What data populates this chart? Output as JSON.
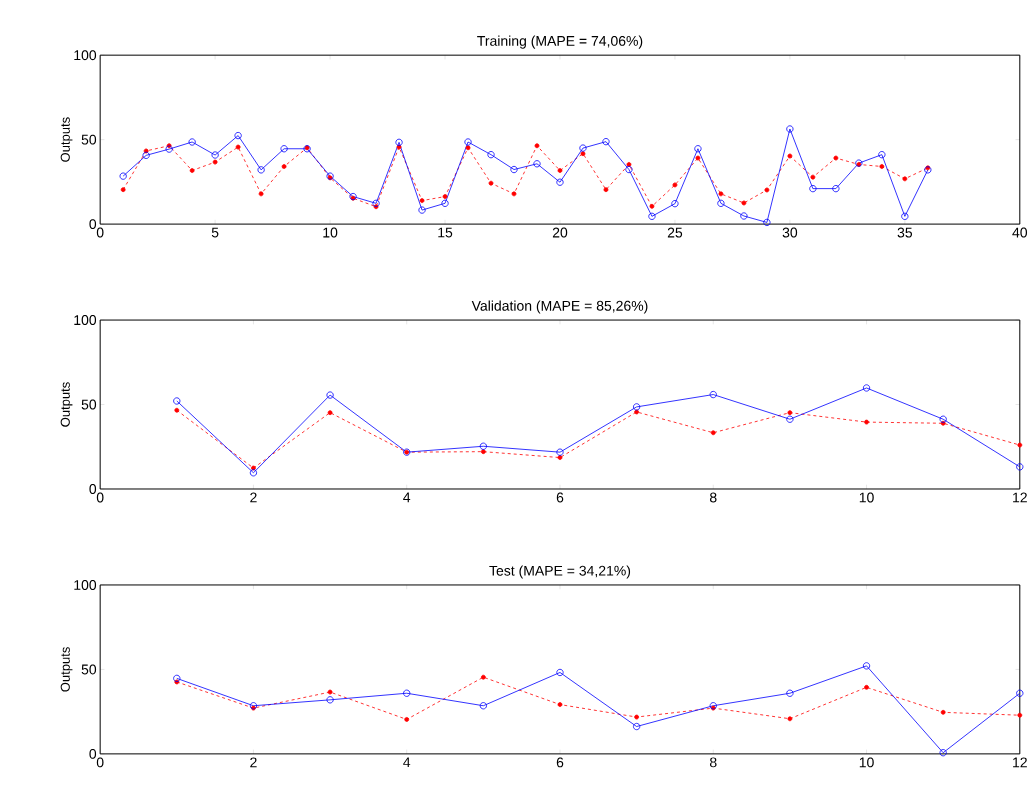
{
  "chart_data": [
    {
      "type": "line",
      "title": "Training (MAPE = 74,06%)",
      "ylabel": "Outputs",
      "x": [
        1,
        2,
        3,
        4,
        5,
        6,
        7,
        8,
        9,
        10,
        11,
        12,
        13,
        14,
        15,
        16,
        17,
        18,
        19,
        20,
        21,
        22,
        23,
        24,
        25,
        26,
        27,
        28,
        29,
        30,
        31,
        32,
        33,
        34,
        35,
        36
      ],
      "series": [
        {
          "color": "#ff0000",
          "marker": "circle",
          "line_style": "dashed",
          "values": [
            20.4,
            43.3,
            46.4,
            31.7,
            36.7,
            45.6,
            17.9,
            34.1,
            45.2,
            27.4,
            15.3,
            10.3,
            45.6,
            13.9,
            16.3,
            45.2,
            24.2,
            17.9,
            46.4,
            31.7,
            41.7,
            20.4,
            35.3,
            10.5,
            23.2,
            39.1,
            17.9,
            12.5,
            20.2,
            40.3,
            27.8,
            39.1,
            35.3,
            34.1,
            26.8,
            33.3
          ]
        },
        {
          "color": "#0000ff",
          "marker": "circle",
          "line_style": "solid",
          "values": [
            28.4,
            40.7,
            44.4,
            48.6,
            40.9,
            52.4,
            32.1,
            44.6,
            44.6,
            28.4,
            16.3,
            12.3,
            48.4,
            8.3,
            12.3,
            48.6,
            41.1,
            32.3,
            35.7,
            24.8,
            45.0,
            48.8,
            32.3,
            4.6,
            12.1,
            44.6,
            12.3,
            4.8,
            1.0,
            56.3,
            21.0,
            21.0,
            36.1,
            41.1,
            4.6,
            32.1
          ]
        }
      ],
      "xlim": [
        0,
        40
      ],
      "ylim": [
        0,
        100
      ],
      "xticks": [
        0,
        5,
        10,
        15,
        20,
        25,
        30,
        35,
        40
      ],
      "yticks": [
        0,
        50,
        100
      ]
    },
    {
      "type": "line",
      "title": "Validation (MAPE = 85,26%)",
      "ylabel": "Outputs",
      "x": [
        1,
        2,
        3,
        4,
        5,
        6,
        7,
        8,
        9,
        10,
        11,
        12
      ],
      "series": [
        {
          "color": "#ff0000",
          "marker": "circle",
          "line_style": "dashed",
          "values": [
            46.6,
            12.4,
            45.2,
            21.8,
            22.1,
            18.6,
            45.6,
            33.3,
            45.2,
            39.6,
            38.9,
            26.0
          ]
        },
        {
          "color": "#0000ff",
          "marker": "circle",
          "line_style": "solid",
          "values": [
            52.1,
            9.6,
            55.6,
            21.8,
            25.3,
            21.8,
            48.6,
            55.9,
            41.3,
            59.8,
            41.3,
            13.1
          ]
        }
      ],
      "xlim": [
        0,
        12
      ],
      "ylim": [
        0,
        100
      ],
      "xticks": [
        0,
        2,
        4,
        6,
        8,
        10,
        12
      ],
      "yticks": [
        0,
        50,
        100
      ]
    },
    {
      "type": "line",
      "title": "Test (MAPE = 34,21%)",
      "ylabel": "Outputs",
      "x": [
        1,
        2,
        3,
        4,
        5,
        6,
        7,
        8,
        9,
        10,
        11,
        12
      ],
      "series": [
        {
          "color": "#ff0000",
          "marker": "circle",
          "line_style": "dashed",
          "values": [
            42.6,
            27.1,
            36.6,
            20.4,
            45.4,
            29.2,
            21.8,
            27.1,
            20.8,
            39.4,
            24.6,
            22.9
          ]
        },
        {
          "color": "#0000ff",
          "marker": "circle",
          "line_style": "solid",
          "values": [
            44.7,
            28.5,
            32.0,
            35.9,
            28.5,
            48.2,
            16.2,
            28.5,
            35.9,
            52.1,
            0.7,
            35.9
          ]
        }
      ],
      "xlim": [
        0,
        12
      ],
      "ylim": [
        0,
        100
      ],
      "xticks": [
        0,
        2,
        4,
        6,
        8,
        10,
        12
      ],
      "yticks": [
        0,
        50,
        100
      ]
    }
  ]
}
